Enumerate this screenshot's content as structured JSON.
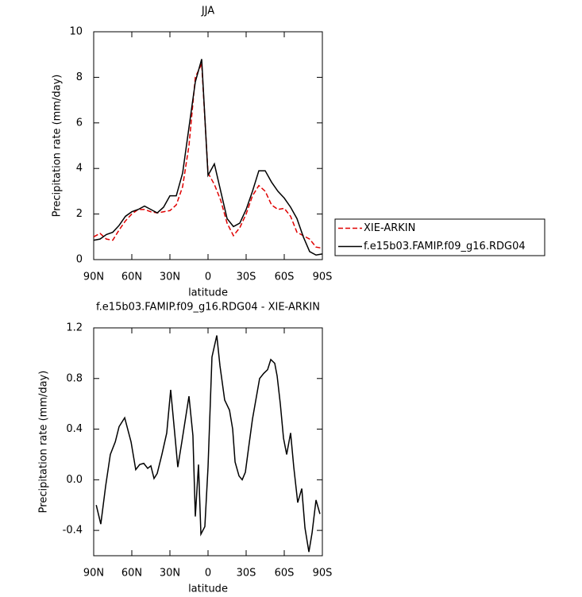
{
  "chart_data": [
    {
      "type": "line",
      "title": "JJA",
      "xlabel": "latitude",
      "ylabel": "Precipitation rate (mm/day)",
      "x": [
        90,
        85,
        80,
        75,
        70,
        65,
        60,
        55,
        50,
        45,
        40,
        35,
        30,
        25,
        20,
        15,
        10,
        5,
        0,
        -5,
        -10,
        -15,
        -20,
        -25,
        -30,
        -35,
        -40,
        -45,
        -50,
        -55,
        -60,
        -65,
        -70,
        -75,
        -80,
        -85,
        -90
      ],
      "series": [
        {
          "name": "XIE-ARKIN",
          "color": "#e00000",
          "dash": true,
          "values": [
            1.0,
            1.15,
            0.9,
            0.85,
            1.3,
            1.7,
            2.0,
            2.2,
            2.2,
            2.1,
            2.05,
            2.1,
            2.15,
            2.4,
            3.2,
            5.0,
            8.0,
            8.6,
            3.8,
            3.3,
            2.6,
            1.6,
            1.05,
            1.4,
            2.0,
            2.8,
            3.25,
            3.0,
            2.4,
            2.2,
            2.25,
            1.9,
            1.2,
            1.05,
            0.9,
            0.55,
            0.5
          ]
        },
        {
          "name": "f.e15b03.FAMIP.f09_g16.RDG04",
          "color": "#000000",
          "dash": false,
          "values": [
            0.85,
            0.9,
            1.1,
            1.2,
            1.5,
            1.9,
            2.1,
            2.2,
            2.35,
            2.2,
            2.05,
            2.3,
            2.8,
            2.8,
            3.8,
            5.8,
            7.8,
            8.8,
            3.7,
            4.2,
            3.0,
            1.8,
            1.45,
            1.6,
            2.2,
            3.0,
            3.9,
            3.9,
            3.4,
            3.0,
            2.7,
            2.3,
            1.8,
            1.0,
            0.35,
            0.2,
            0.25
          ]
        }
      ],
      "xlim": [
        90,
        -90
      ],
      "xticks": [
        {
          "value": 90,
          "label": "90N"
        },
        {
          "value": 60,
          "label": "60N"
        },
        {
          "value": 30,
          "label": "30N"
        },
        0,
        {
          "value": -30,
          "label": "30S"
        },
        {
          "value": -60,
          "label": "60S"
        },
        {
          "value": -90,
          "label": "90S"
        }
      ],
      "ylim": [
        0,
        10
      ],
      "yticks": [
        0,
        2,
        4,
        6,
        8,
        10
      ],
      "legend": "right"
    },
    {
      "type": "line",
      "title": "f.e15b03.FAMIP.f09_g16.RDG04 - XIE-ARKIN",
      "xlabel": "latitude",
      "ylabel": "Precipitation rate (mm/day)",
      "x": [
        88,
        84.4,
        80.6,
        76.9,
        73,
        70,
        65.6,
        60.6,
        56.9,
        53.8,
        50.6,
        47.5,
        45,
        42.5,
        40,
        36.3,
        32.5,
        29.4,
        25.6,
        23.8,
        20.6,
        17.5,
        15,
        11.9,
        10,
        7.5,
        5.6,
        2.5,
        0,
        -3.1,
        -6.9,
        -9.4,
        -13.1,
        -16.9,
        -19.4,
        -21.3,
        -24.4,
        -26.9,
        -29.4,
        -31.9,
        -35,
        -40.6,
        -43.8,
        -46.9,
        -49.4,
        -52.5,
        -54.4,
        -56.9,
        -59.4,
        -61.9,
        -65,
        -67.5,
        -70.6,
        -73.8,
        -76.3,
        -79.4,
        -81.9,
        -85,
        -88.1
      ],
      "values": [
        -0.2,
        -0.35,
        -0.05,
        0.2,
        0.3,
        0.42,
        0.49,
        0.3,
        0.08,
        0.12,
        0.13,
        0.09,
        0.11,
        0.01,
        0.05,
        0.2,
        0.37,
        0.71,
        0.3,
        0.1,
        0.3,
        0.5,
        0.66,
        0.35,
        -0.29,
        0.12,
        -0.43,
        -0.37,
        0.1,
        0.97,
        1.14,
        0.9,
        0.63,
        0.55,
        0.4,
        0.14,
        0.03,
        0.0,
        0.06,
        0.25,
        0.48,
        0.8,
        0.84,
        0.87,
        0.95,
        0.92,
        0.82,
        0.6,
        0.33,
        0.2,
        0.37,
        0.1,
        -0.18,
        -0.07,
        -0.38,
        -0.57,
        -0.42,
        -0.16,
        -0.27
      ],
      "color": "#000000",
      "xlim": [
        90,
        -90
      ],
      "xticks": [
        {
          "value": 90,
          "label": "90N"
        },
        {
          "value": 60,
          "label": "60N"
        },
        {
          "value": 30,
          "label": "30N"
        },
        0,
        {
          "value": -30,
          "label": "30S"
        },
        {
          "value": -60,
          "label": "60S"
        },
        {
          "value": -90,
          "label": "90S"
        }
      ],
      "ylim": [
        -0.6,
        1.2
      ],
      "yticks": [
        -0.4,
        {
          "value": 0,
          "label": "0.0"
        },
        0.4,
        0.8,
        1.2
      ]
    }
  ]
}
